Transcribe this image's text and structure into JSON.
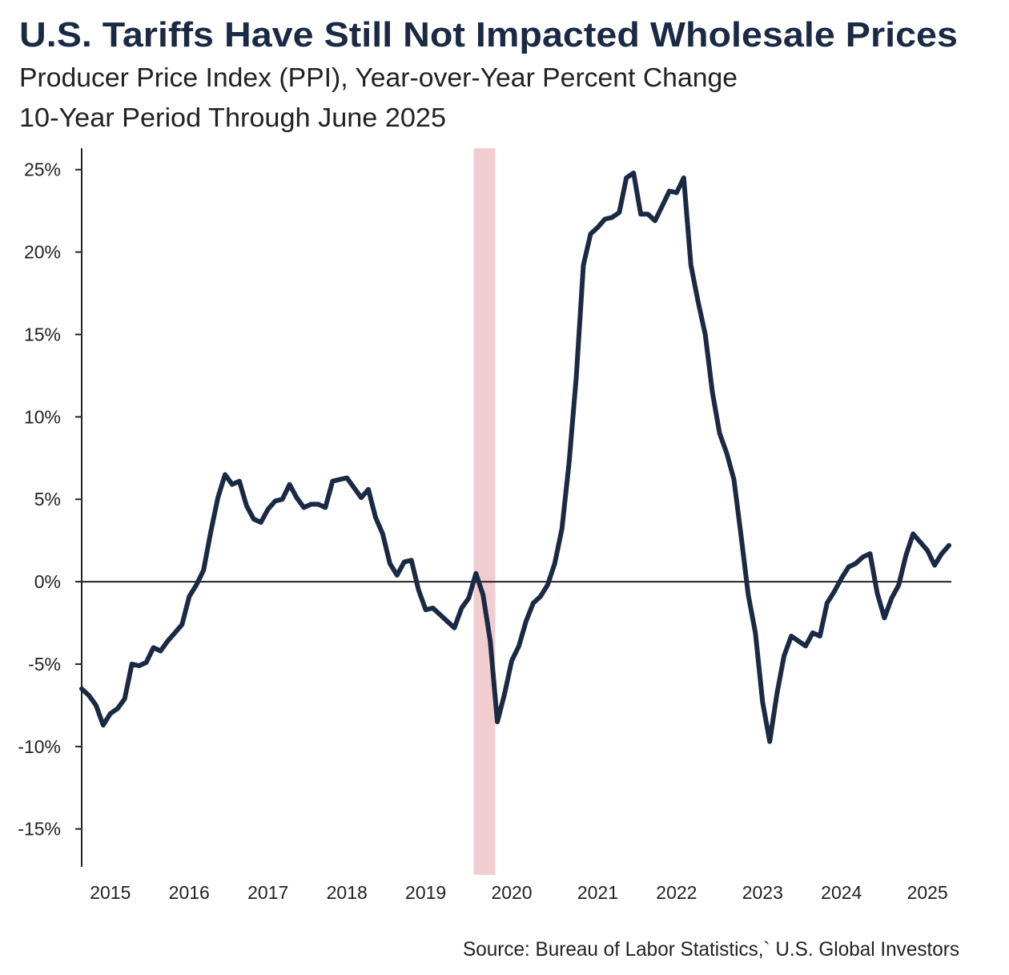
{
  "chart_data": {
    "type": "line",
    "title": "U.S. Tariffs Have Still Not Impacted Wholesale Prices",
    "subtitle": [
      "Producer Price Index (PPI), Year-over-Year Percent Change",
      "10-Year Period Through June 2025"
    ],
    "source": "Source: Bureau of Labor Statistics,` U.S. Global Investors",
    "categories": [
      null,
      null,
      null,
      null,
      "2015",
      null,
      null,
      null,
      null,
      null,
      null,
      null,
      null,
      null,
      null,
      "2016",
      null,
      null,
      null,
      null,
      null,
      null,
      null,
      null,
      null,
      null,
      "2017",
      null,
      null,
      null,
      null,
      null,
      null,
      null,
      null,
      null,
      null,
      "2018",
      null,
      null,
      null,
      null,
      null,
      null,
      null,
      null,
      null,
      null,
      "2019",
      null,
      null,
      null,
      null,
      null,
      null,
      null,
      null,
      null,
      null,
      null,
      "2020",
      null,
      null,
      null,
      null,
      null,
      null,
      null,
      null,
      null,
      null,
      null,
      "2021",
      null,
      null,
      null,
      null,
      null,
      null,
      null,
      null,
      null,
      null,
      "2022",
      null,
      null,
      null,
      null,
      null,
      null,
      null,
      null,
      null,
      null,
      null,
      "2023",
      null,
      null,
      null,
      null,
      null,
      null,
      null,
      null,
      null,
      null,
      "2024",
      null,
      null,
      null,
      null,
      null,
      null,
      null,
      null,
      null,
      null,
      null,
      "2025",
      null,
      null,
      null
    ],
    "values": [
      -6.5,
      -6.9,
      -7.5,
      -8.7,
      -8.0,
      -7.7,
      -7.1,
      -5.0,
      -5.1,
      -4.9,
      -4.0,
      -4.2,
      -3.6,
      -3.1,
      -2.6,
      -0.9,
      -0.2,
      0.7,
      3.0,
      5.1,
      6.5,
      5.9,
      6.1,
      4.6,
      3.8,
      3.6,
      4.4,
      4.9,
      5.0,
      5.9,
      5.1,
      4.5,
      4.7,
      4.7,
      4.5,
      6.1,
      6.2,
      6.3,
      5.7,
      5.1,
      5.6,
      3.9,
      2.9,
      1.1,
      0.4,
      1.2,
      1.3,
      -0.5,
      -1.7,
      -1.6,
      -2.0,
      -2.4,
      -2.8,
      -1.6,
      -1.0,
      0.5,
      -0.8,
      -3.6,
      -8.5,
      -6.8,
      -4.8,
      -3.9,
      -2.4,
      -1.3,
      -0.9,
      -0.2,
      1.1,
      3.2,
      7.2,
      12.4,
      19.2,
      21.1,
      21.5,
      22.0,
      22.1,
      22.4,
      24.5,
      24.8,
      22.3,
      22.3,
      21.9,
      22.8,
      23.7,
      23.6,
      24.5,
      19.2,
      17.0,
      15.0,
      11.5,
      9.0,
      7.8,
      6.2,
      2.8,
      -0.8,
      -3.1,
      -7.3,
      -9.7,
      -6.8,
      -4.5,
      -3.3,
      -3.6,
      -3.9,
      -3.1,
      -3.3,
      -1.3,
      -0.6,
      0.2,
      0.9,
      1.1,
      1.5,
      1.7,
      -0.7,
      -2.2,
      -1.0,
      -0.2,
      1.6,
      2.9,
      2.4,
      1.9,
      1.0,
      1.7,
      2.2
    ],
    "color": "#1b2a44",
    "highlight": {
      "from": 54.7,
      "to": 57.7,
      "color": "#f2cdd0"
    },
    "ylim": [
      -17.3,
      26.3
    ],
    "yticks": [
      {
        "value": -15,
        "label": "-15%"
      },
      {
        "value": -10,
        "label": "-10%"
      },
      {
        "value": -5,
        "label": "-5%"
      },
      {
        "value": 0,
        "label": "0%"
      },
      {
        "value": 5,
        "label": "5%"
      },
      {
        "value": 10,
        "label": "10%"
      },
      {
        "value": 15,
        "label": "15%"
      },
      {
        "value": 20,
        "label": "20%"
      },
      {
        "value": 25,
        "label": "25%"
      }
    ],
    "grid": false
  }
}
